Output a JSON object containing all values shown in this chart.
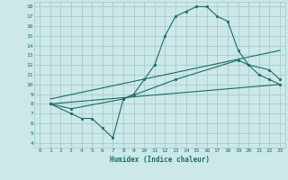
{
  "background_color": "#cce8e8",
  "grid_color": "#a8cccc",
  "line_color": "#1a6b6b",
  "xlabel": "Humidex (Indice chaleur)",
  "xlim": [
    -0.5,
    23.5
  ],
  "ylim": [
    3.5,
    18.5
  ],
  "xticks": [
    0,
    1,
    2,
    3,
    4,
    5,
    6,
    7,
    8,
    9,
    10,
    11,
    12,
    13,
    14,
    15,
    16,
    17,
    18,
    19,
    20,
    21,
    22,
    23
  ],
  "yticks": [
    4,
    5,
    6,
    7,
    8,
    9,
    10,
    11,
    12,
    13,
    14,
    15,
    16,
    17,
    18
  ],
  "curve1_x": [
    1,
    3,
    4,
    5,
    6,
    7,
    8,
    9,
    10,
    11,
    12,
    13,
    14,
    15,
    16,
    17,
    18,
    19,
    20,
    21,
    22,
    23
  ],
  "curve1_y": [
    8.0,
    7.0,
    6.5,
    6.5,
    5.5,
    4.5,
    8.5,
    9.0,
    10.5,
    12.0,
    15.0,
    17.0,
    17.5,
    18.0,
    18.0,
    17.0,
    16.5,
    13.5,
    12.0,
    11.0,
    10.5,
    10.0
  ],
  "curve2_x": [
    1,
    3,
    8,
    13,
    19,
    20,
    22,
    23
  ],
  "curve2_y": [
    8.0,
    7.5,
    8.5,
    10.5,
    12.5,
    12.0,
    11.5,
    10.5
  ],
  "curve3_x": [
    1,
    23
  ],
  "curve3_y": [
    8.5,
    13.5
  ],
  "curve4_x": [
    1,
    23
  ],
  "curve4_y": [
    8.0,
    10.0
  ]
}
